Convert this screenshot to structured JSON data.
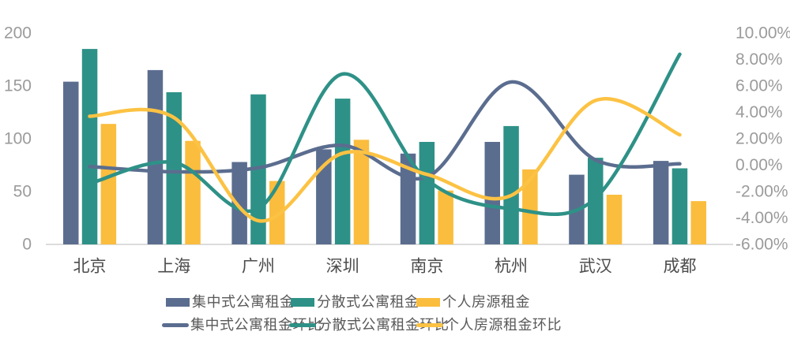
{
  "chart_data": {
    "type": "combo",
    "title": "",
    "categories": [
      "北京",
      "上海",
      "广州",
      "深圳",
      "南京",
      "杭州",
      "武汉",
      "成都"
    ],
    "left_axis": {
      "range": [
        0,
        200
      ],
      "tick_values": [
        0,
        50,
        100,
        150,
        200
      ],
      "tick_labels": [
        "0",
        "50",
        "100",
        "150",
        "200"
      ]
    },
    "right_axis": {
      "range": [
        -6,
        10
      ],
      "tick_values": [
        10,
        8,
        6,
        4,
        2,
        0,
        -2,
        -4,
        -6
      ],
      "tick_labels": [
        "10.00%",
        "8.00%",
        "6.00%",
        "4.00%",
        "2.00%",
        "0.00%",
        "-2.00%",
        "-4.00%",
        "-6.00%"
      ]
    },
    "bar_series": [
      {
        "name": "集中式公寓租金",
        "color": "#5b6d8f",
        "values": [
          154,
          165,
          78,
          90,
          86,
          97,
          66,
          79
        ]
      },
      {
        "name": "分散式公寓租金",
        "color": "#2e9187",
        "values": [
          185,
          144,
          142,
          138,
          97,
          112,
          82,
          72
        ]
      },
      {
        "name": "个人房源租金",
        "color": "#fbbd3d",
        "values": [
          114,
          98,
          60,
          99,
          51,
          71,
          47,
          41
        ]
      }
    ],
    "line_series": [
      {
        "name": "集中式公寓租金环比",
        "color": "#5b6d8f",
        "values": [
          -0.1,
          -0.5,
          -0.2,
          1.5,
          -0.9,
          6.3,
          0.4,
          0.1
        ]
      },
      {
        "name": "分散式公寓租金环比",
        "color": "#2e9187",
        "values": [
          -1.4,
          0.2,
          -3.3,
          6.9,
          -1.1,
          -3.3,
          -2.5,
          8.4
        ]
      },
      {
        "name": "个人房源租金环比",
        "color": "#fcc243",
        "values": [
          3.7,
          3.6,
          -4.2,
          0.9,
          -0.7,
          -2.3,
          4.9,
          2.3
        ]
      }
    ],
    "grid": false,
    "legend_position": "bottom",
    "axis_text_color": "#9b9b9b",
    "category_text_color": "#4c4c4c",
    "axis_line_color": "#dcdcdc"
  }
}
